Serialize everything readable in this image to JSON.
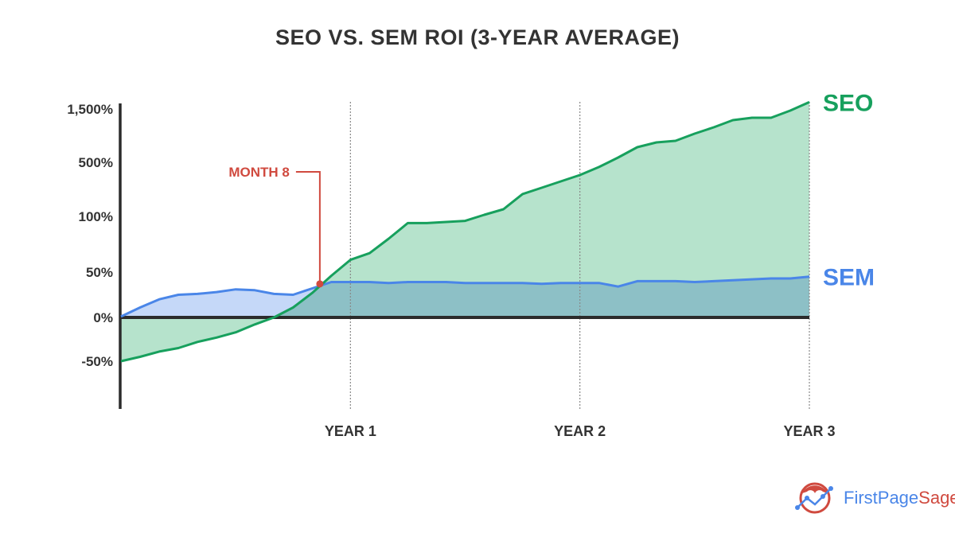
{
  "chart_data": {
    "type": "area",
    "title": "SEO VS. SEM ROI (3-YEAR AVERAGE)",
    "xlabel": "",
    "ylabel": "",
    "x_unit": "month",
    "x": [
      0,
      1,
      2,
      3,
      4,
      5,
      6,
      7,
      8,
      9,
      10,
      11,
      12,
      13,
      14,
      15,
      16,
      17,
      18,
      19,
      20,
      21,
      22,
      23,
      24,
      25,
      26,
      27,
      28,
      29,
      30,
      31,
      32,
      33,
      34,
      35,
      36
    ],
    "xlim": [
      0,
      36
    ],
    "x_ticks": [
      {
        "value": 12,
        "label": "YEAR 1"
      },
      {
        "value": 24,
        "label": "YEAR 2"
      },
      {
        "value": 36,
        "label": "YEAR 3"
      }
    ],
    "y_scale": "nonlinear (custom spaced ticks)",
    "y_ticks": [
      {
        "value": -50,
        "label": "-50%"
      },
      {
        "value": 0,
        "label": "0%"
      },
      {
        "value": 50,
        "label": "50%"
      },
      {
        "value": 100,
        "label": "100%"
      },
      {
        "value": 500,
        "label": "500%"
      },
      {
        "value": 1500,
        "label": "1,500%"
      }
    ],
    "grid": "vertical dotted lines at year ticks",
    "series": [
      {
        "name": "SEO",
        "color": "#17a05d",
        "fill": "#b6e3cc",
        "values": [
          -50,
          -45,
          -39,
          -35,
          -28,
          -23,
          -17,
          -8,
          0,
          11,
          27,
          46,
          61,
          67,
          80,
          94,
          94,
          95,
          96,
          112,
          153,
          265,
          312,
          359,
          406,
          465,
          590,
          784,
          873,
          903,
          1037,
          1157,
          1291,
          1336,
          1336,
          1470,
          1630
        ]
      },
      {
        "name": "SEM",
        "color": "#4a86e8",
        "fill": "#c5d8f8",
        "values": [
          1,
          11,
          20,
          25,
          26,
          28,
          31,
          30,
          26,
          25,
          32,
          39,
          39,
          39,
          38,
          39,
          39,
          39,
          38,
          38,
          38,
          38,
          37,
          38,
          38,
          38,
          34,
          40,
          40,
          40,
          39,
          40,
          41,
          42,
          43,
          43,
          45
        ]
      }
    ],
    "annotations": [
      {
        "label": "MONTH 8",
        "x": 10.4,
        "y": 37,
        "color": "#d04a3f"
      }
    ],
    "legend": "inline labels at right end of series"
  },
  "logo": {
    "text_a": "FirstPage",
    "text_b": "Sage",
    "color_a": "#4a86e8",
    "color_b": "#d04a3f"
  }
}
